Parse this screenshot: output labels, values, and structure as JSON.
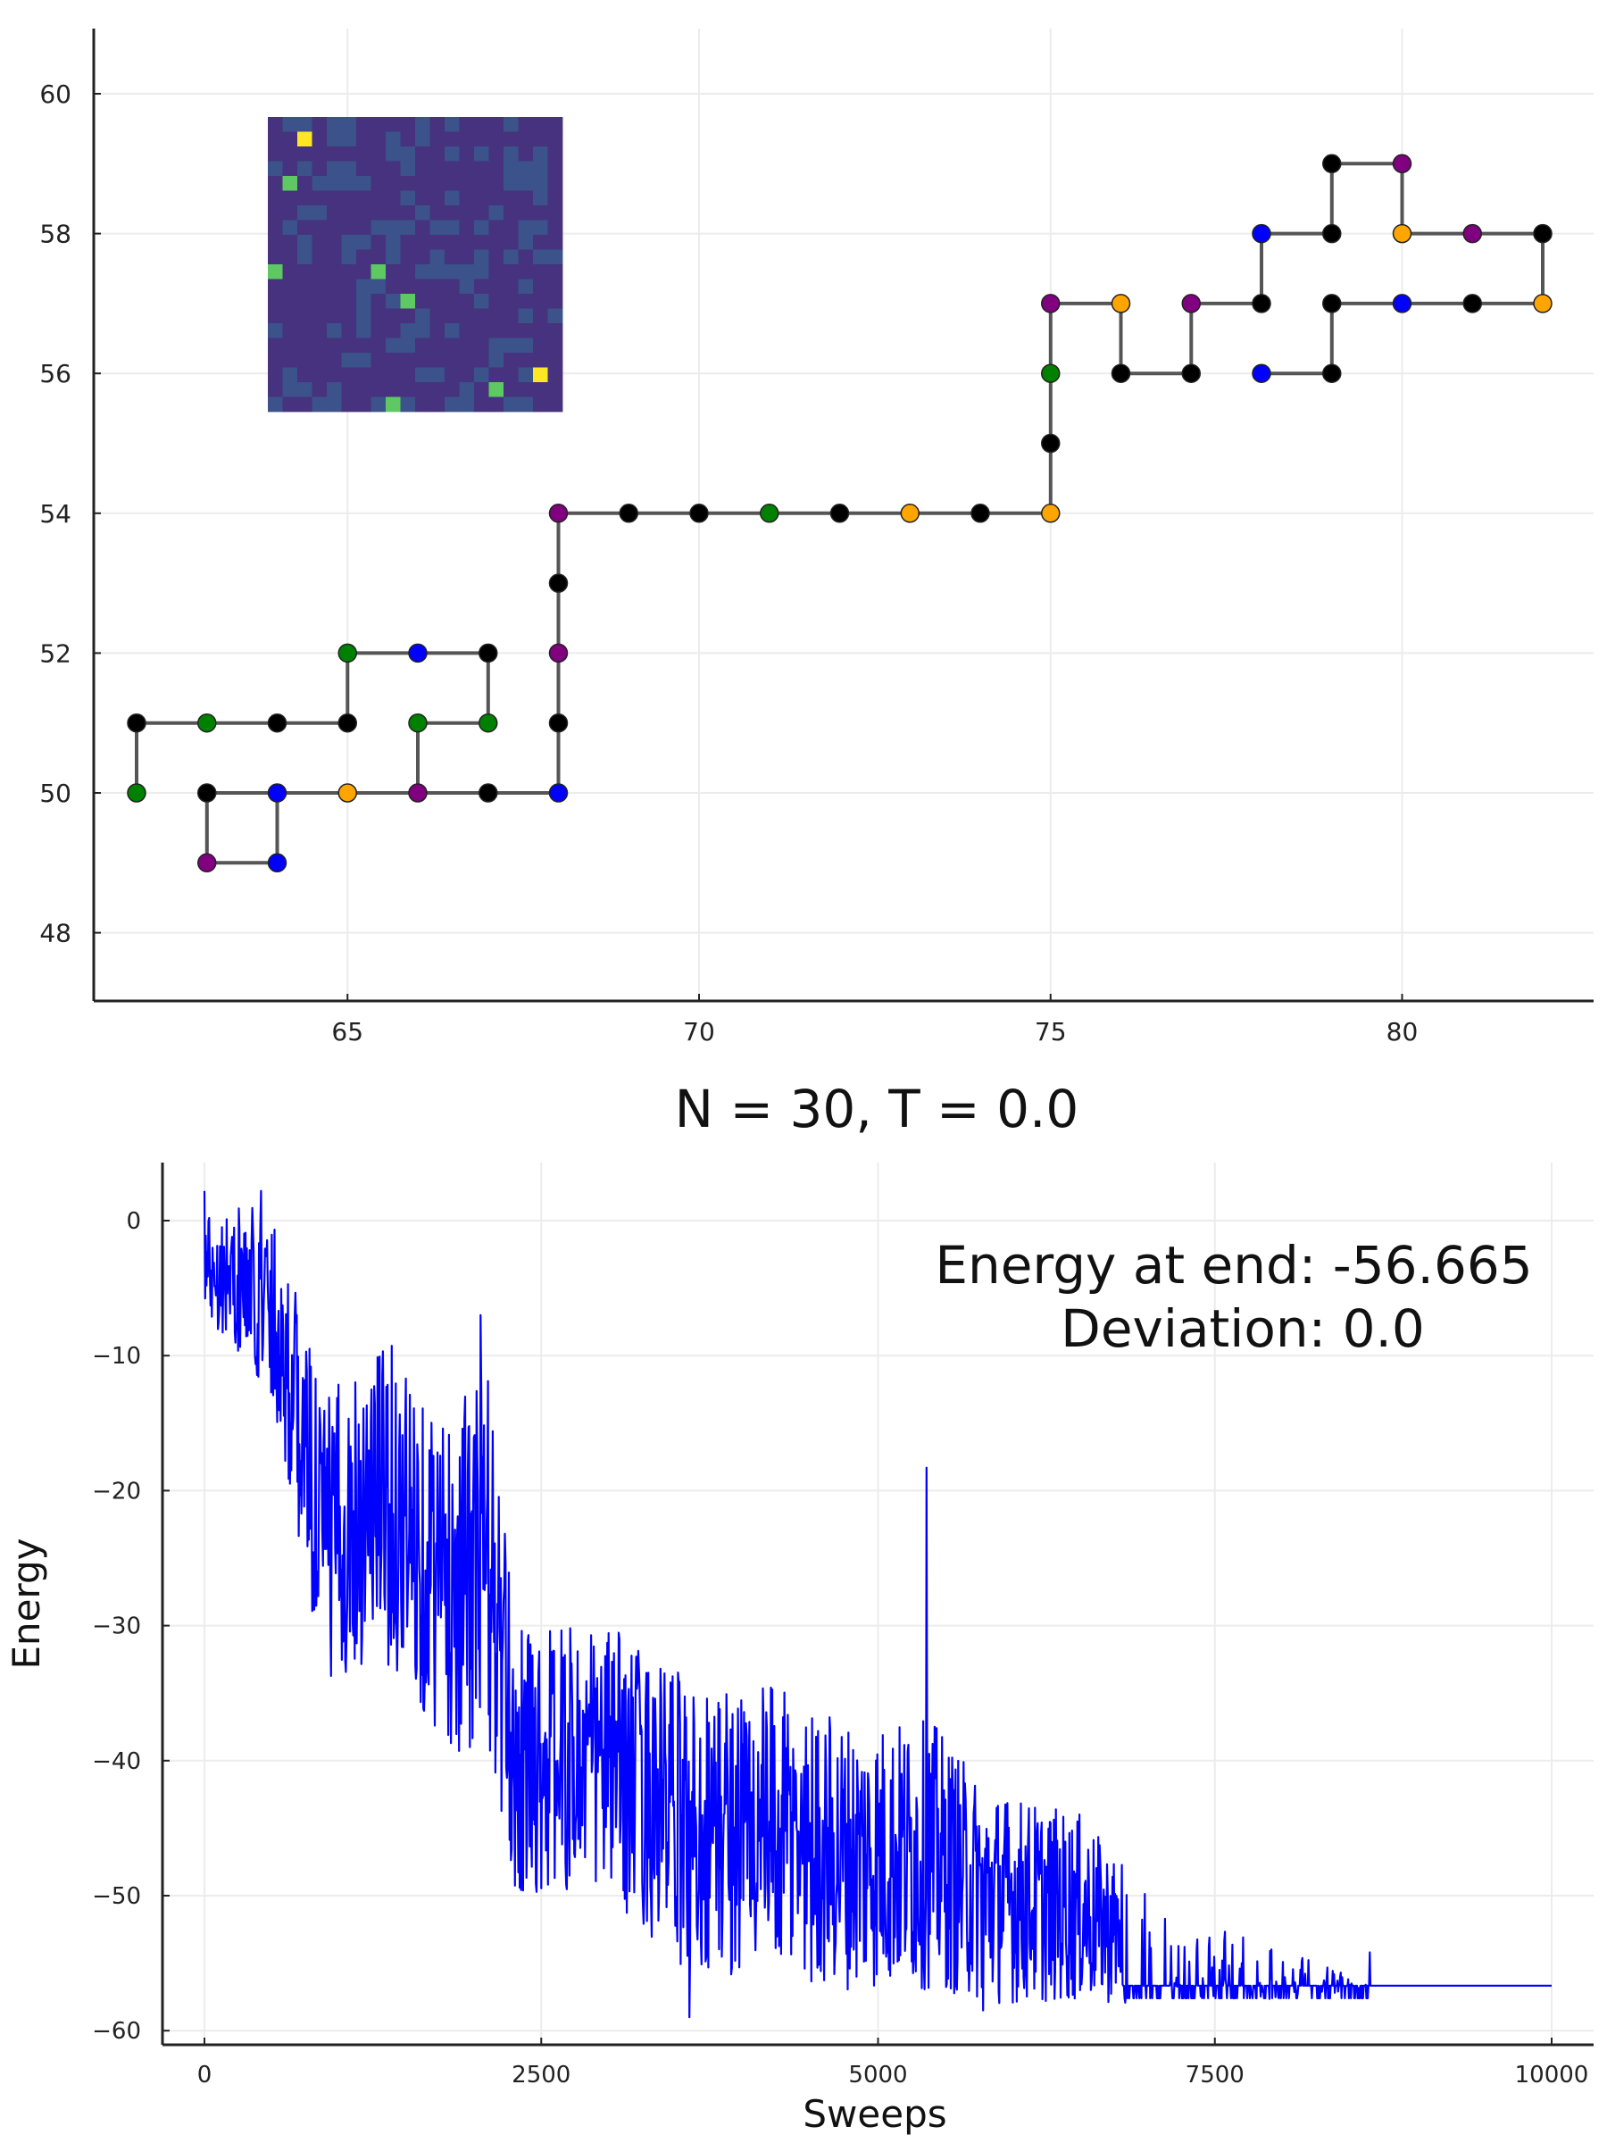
{
  "chart_data": [
    {
      "type": "scatter",
      "title": "",
      "xlabel": "",
      "ylabel": "",
      "xlim": [
        61.6,
        82.6
      ],
      "ylim": [
        47.1,
        60.9
      ],
      "xticks": [
        65,
        70,
        75,
        80
      ],
      "yticks": [
        48,
        50,
        52,
        54,
        56,
        58,
        60
      ],
      "grid": true,
      "legend": "none",
      "line_color": "#555555",
      "chain": [
        {
          "x": 62,
          "y": 50,
          "color": "green"
        },
        {
          "x": 62,
          "y": 51,
          "color": "black"
        },
        {
          "x": 63,
          "y": 51,
          "color": "green"
        },
        {
          "x": 64,
          "y": 51,
          "color": "black"
        },
        {
          "x": 65,
          "y": 51,
          "color": "black"
        },
        {
          "x": 65,
          "y": 52,
          "color": "green"
        },
        {
          "x": 66,
          "y": 52,
          "color": "blue"
        },
        {
          "x": 67,
          "y": 52,
          "color": "black"
        },
        {
          "x": 67,
          "y": 51,
          "color": "green"
        },
        {
          "x": 66,
          "y": 51,
          "color": "green"
        },
        {
          "x": 66,
          "y": 50,
          "color": "purple"
        },
        {
          "x": 65,
          "y": 50,
          "color": "orange"
        },
        {
          "x": 64,
          "y": 50,
          "color": "blue"
        },
        {
          "x": 64,
          "y": 49,
          "color": "blue"
        },
        {
          "x": 63,
          "y": 49,
          "color": "purple"
        },
        {
          "x": 63,
          "y": 50,
          "color": "black"
        },
        {
          "x": 67,
          "y": 50,
          "color": "black"
        },
        {
          "x": 68,
          "y": 50,
          "color": "blue"
        },
        {
          "x": 68,
          "y": 51,
          "color": "black"
        },
        {
          "x": 68,
          "y": 52,
          "color": "purple"
        },
        {
          "x": 68,
          "y": 53,
          "color": "black"
        },
        {
          "x": 68,
          "y": 54,
          "color": "purple"
        },
        {
          "x": 69,
          "y": 54,
          "color": "black"
        },
        {
          "x": 70,
          "y": 54,
          "color": "black"
        },
        {
          "x": 71,
          "y": 54,
          "color": "green"
        },
        {
          "x": 72,
          "y": 54,
          "color": "black"
        },
        {
          "x": 73,
          "y": 54,
          "color": "orange"
        },
        {
          "x": 74,
          "y": 54,
          "color": "black"
        },
        {
          "x": 75,
          "y": 54,
          "color": "orange"
        },
        {
          "x": 75,
          "y": 55,
          "color": "black"
        },
        {
          "x": 75,
          "y": 56,
          "color": "green"
        },
        {
          "x": 75,
          "y": 57,
          "color": "purple"
        },
        {
          "x": 76,
          "y": 57,
          "color": "orange"
        },
        {
          "x": 76,
          "y": 56,
          "color": "black"
        },
        {
          "x": 77,
          "y": 56,
          "color": "black"
        },
        {
          "x": 77,
          "y": 57,
          "color": "purple"
        },
        {
          "x": 78,
          "y": 57,
          "color": "black"
        },
        {
          "x": 78,
          "y": 58,
          "color": "blue"
        },
        {
          "x": 79,
          "y": 58,
          "color": "black"
        },
        {
          "x": 79,
          "y": 59,
          "color": "black"
        },
        {
          "x": 80,
          "y": 59,
          "color": "purple"
        },
        {
          "x": 80,
          "y": 58,
          "color": "orange"
        },
        {
          "x": 81,
          "y": 58,
          "color": "purple"
        },
        {
          "x": 82,
          "y": 58,
          "color": "black"
        },
        {
          "x": 82,
          "y": 57,
          "color": "orange"
        },
        {
          "x": 81,
          "y": 57,
          "color": "black"
        },
        {
          "x": 80,
          "y": 57,
          "color": "blue"
        },
        {
          "x": 79,
          "y": 57,
          "color": "black"
        },
        {
          "x": 79,
          "y": 56,
          "color": "black"
        },
        {
          "x": 78,
          "y": 56,
          "color": "blue"
        }
      ],
      "inset": {
        "type": "heatmap",
        "size": 20,
        "colormap": "viridis",
        "highlights": [
          {
            "row": 1,
            "col": 2,
            "level": 1.0
          },
          {
            "row": 4,
            "col": 1,
            "level": 0.8
          },
          {
            "row": 10,
            "col": 0,
            "level": 0.8
          },
          {
            "row": 10,
            "col": 7,
            "level": 0.8
          },
          {
            "row": 12,
            "col": 9,
            "level": 0.8
          },
          {
            "row": 17,
            "col": 18,
            "level": 1.0
          },
          {
            "row": 18,
            "col": 15,
            "level": 0.8
          },
          {
            "row": 19,
            "col": 8,
            "level": 0.8
          }
        ]
      }
    },
    {
      "type": "line",
      "title": "N = 30, T = 0.0",
      "xlabel": "Sweeps",
      "ylabel": "Energy",
      "xlim": [
        -300,
        10300
      ],
      "ylim": [
        -61,
        4
      ],
      "xticks": [
        0,
        2500,
        5000,
        7500,
        10000
      ],
      "yticks": [
        0,
        -10,
        -20,
        -30,
        -40,
        -50,
        -60
      ],
      "grid": true,
      "legend": "none",
      "series_color": "#0000ff",
      "annotation": [
        "Energy at end: -56.665",
        "Deviation: 0.0"
      ],
      "trend": [
        {
          "x": 0,
          "mean": -3,
          "amp": 4
        },
        {
          "x": 500,
          "mean": -6,
          "amp": 7
        },
        {
          "x": 900,
          "mean": -24,
          "amp": 11
        },
        {
          "x": 1300,
          "mean": -20,
          "amp": 12
        },
        {
          "x": 1800,
          "mean": -27,
          "amp": 12
        },
        {
          "x": 2100,
          "mean": -25,
          "amp": 15
        },
        {
          "x": 2300,
          "mean": -40,
          "amp": 10
        },
        {
          "x": 3000,
          "mean": -40,
          "amp": 10
        },
        {
          "x": 3600,
          "mean": -45,
          "amp": 11
        },
        {
          "x": 4100,
          "mean": -45,
          "amp": 11
        },
        {
          "x": 4800,
          "mean": -47,
          "amp": 10
        },
        {
          "x": 5400,
          "mean": -47,
          "amp": 10
        },
        {
          "x": 5800,
          "mean": -50,
          "amp": 8
        },
        {
          "x": 6500,
          "mean": -51,
          "amp": 7
        },
        {
          "x": 7000,
          "mean": -54,
          "amp": 4
        },
        {
          "x": 7700,
          "mean": -55.5,
          "amp": 2.5
        },
        {
          "x": 8300,
          "mean": -56.2,
          "amp": 1.2
        },
        {
          "x": 8650,
          "mean": -56.665,
          "amp": 0
        },
        {
          "x": 10000,
          "mean": -56.665,
          "amp": 0
        }
      ],
      "spikes": [
        {
          "x": 0,
          "y": 2.2
        },
        {
          "x": 420,
          "y": 2.2
        },
        {
          "x": 2050,
          "y": -7
        },
        {
          "x": 5360,
          "y": -18.3
        },
        {
          "x": 3600,
          "y": -59
        },
        {
          "x": 5780,
          "y": -58.5
        },
        {
          "x": 8650,
          "y": -54.2
        }
      ]
    }
  ]
}
